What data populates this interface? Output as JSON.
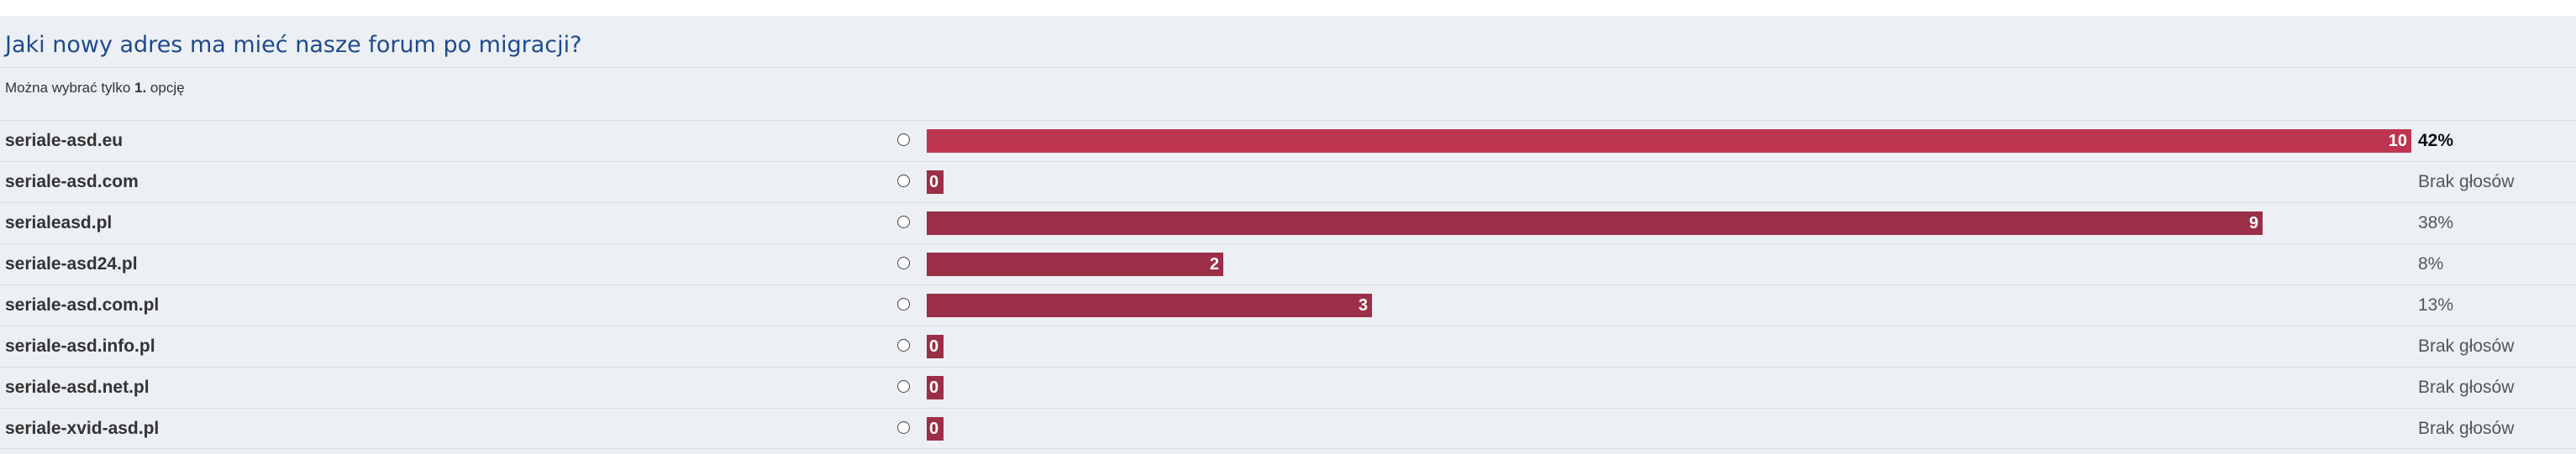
{
  "poll": {
    "title": "Jaki nowy adres ma mieć nasze forum po migracji?",
    "hint_prefix": "Można wybrać tylko ",
    "hint_count": "1.",
    "hint_suffix": " opcję",
    "max_votes": 10,
    "colors": {
      "panel_bg": "#ecf0f4",
      "title": "#1f4a8c",
      "bar": "#9b2f48",
      "bar_leader": "#bd3550"
    },
    "options": [
      {
        "label": "seriale-asd.eu",
        "votes": 10,
        "count_text": "10",
        "result": "42%",
        "leader": true
      },
      {
        "label": "seriale-asd.com",
        "votes": 0,
        "count_text": "0",
        "result": "Brak głosów",
        "leader": false
      },
      {
        "label": "serialeasd.pl",
        "votes": 9,
        "count_text": "9",
        "result": "38%",
        "leader": false
      },
      {
        "label": "seriale-asd24.pl",
        "votes": 2,
        "count_text": "2",
        "result": "8%",
        "leader": false
      },
      {
        "label": "seriale-asd.com.pl",
        "votes": 3,
        "count_text": "3",
        "result": "13%",
        "leader": false
      },
      {
        "label": "seriale-asd.info.pl",
        "votes": 0,
        "count_text": "0",
        "result": "Brak głosów",
        "leader": false
      },
      {
        "label": "seriale-asd.net.pl",
        "votes": 0,
        "count_text": "0",
        "result": "Brak głosów",
        "leader": false
      },
      {
        "label": "seriale-xvid-asd.pl",
        "votes": 0,
        "count_text": "0",
        "result": "Brak głosów",
        "leader": false
      }
    ]
  }
}
